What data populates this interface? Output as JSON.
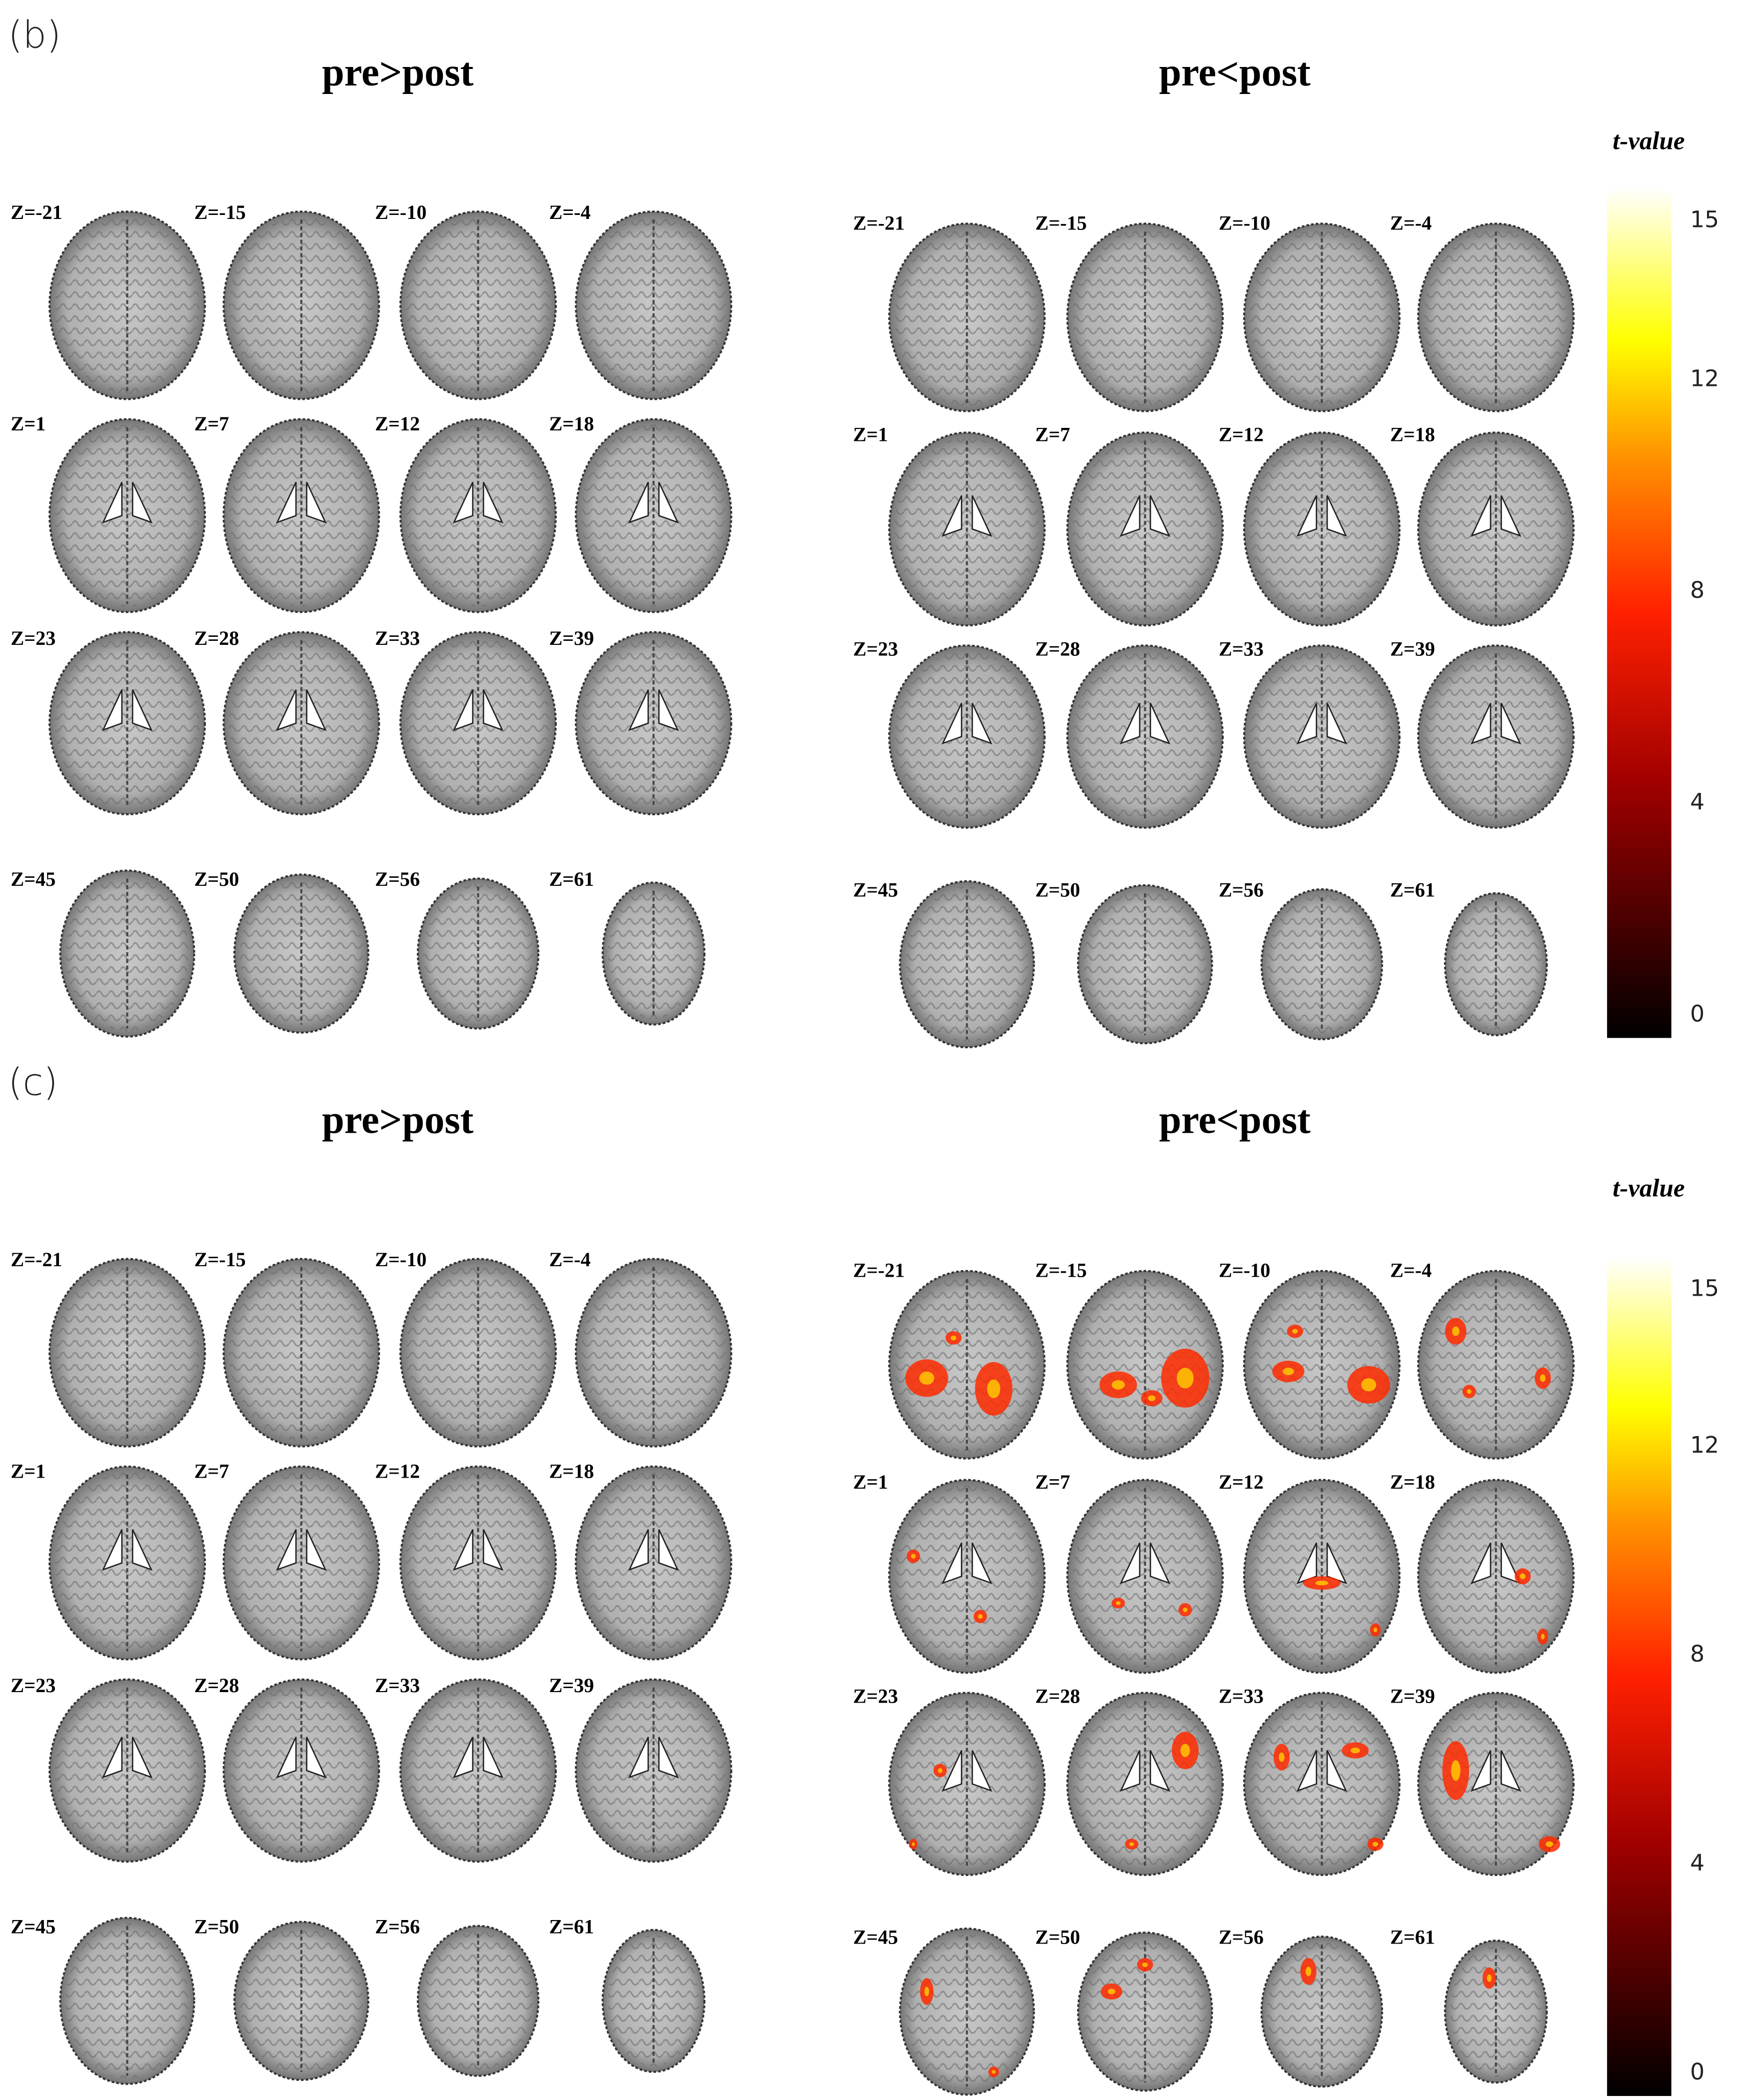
{
  "panels": [
    {
      "label": "(b)",
      "groups": [
        {
          "title": "pre>post",
          "slices": [
            "Z=-21",
            "Z=-15",
            "Z=-10",
            "Z=-4",
            "Z=1",
            "Z=7",
            "Z=12",
            "Z=18",
            "Z=23",
            "Z=28",
            "Z=33",
            "Z=39",
            "Z=45",
            "Z=50",
            "Z=56",
            "Z=61"
          ]
        },
        {
          "title": "pre<post",
          "slices": [
            "Z=-21",
            "Z=-15",
            "Z=-10",
            "Z=-4",
            "Z=1",
            "Z=7",
            "Z=12",
            "Z=18",
            "Z=23",
            "Z=28",
            "Z=33",
            "Z=39",
            "Z=45",
            "Z=50",
            "Z=56",
            "Z=61"
          ]
        }
      ],
      "colorbar": {
        "title": "t-value",
        "ticks": [
          0,
          4,
          8,
          12,
          15
        ]
      }
    },
    {
      "label": "(c)",
      "groups": [
        {
          "title": "pre>post",
          "slices": [
            "Z=-21",
            "Z=-15",
            "Z=-10",
            "Z=-4",
            "Z=1",
            "Z=7",
            "Z=12",
            "Z=18",
            "Z=23",
            "Z=28",
            "Z=33",
            "Z=39",
            "Z=45",
            "Z=50",
            "Z=56",
            "Z=61"
          ]
        },
        {
          "title": "pre<post",
          "slices": [
            "Z=-21",
            "Z=-15",
            "Z=-10",
            "Z=-4",
            "Z=1",
            "Z=7",
            "Z=12",
            "Z=18",
            "Z=23",
            "Z=28",
            "Z=33",
            "Z=39",
            "Z=45",
            "Z=50",
            "Z=56",
            "Z=61"
          ]
        }
      ],
      "colorbar": {
        "title": "t-value",
        "ticks": [
          0,
          4,
          8,
          12,
          15
        ]
      }
    }
  ]
}
